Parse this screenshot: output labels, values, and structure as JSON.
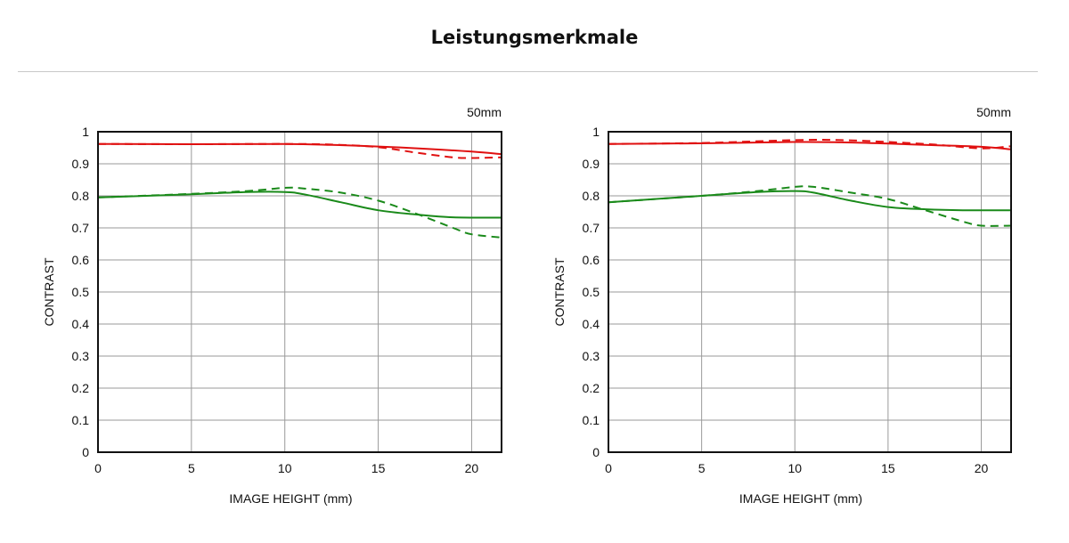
{
  "header": {
    "title": "Leistungsmerkmale"
  },
  "chart_data": [
    {
      "type": "line",
      "focal_label": "50mm",
      "xlabel": "IMAGE HEIGHT (mm)",
      "ylabel": "CONTRAST",
      "xlim": [
        0,
        21.6
      ],
      "ylim": [
        0,
        1
      ],
      "xticks": [
        0,
        5,
        10,
        15,
        20
      ],
      "yticks": [
        0,
        0.1,
        0.2,
        0.3,
        0.4,
        0.5,
        0.6,
        0.7,
        0.8,
        0.9,
        1
      ],
      "grid": true,
      "series": [
        {
          "color": "#e01010",
          "dash": false,
          "x": [
            0,
            5,
            10,
            12.5,
            15,
            17.5,
            20,
            21.6
          ],
          "y": [
            0.962,
            0.961,
            0.962,
            0.959,
            0.954,
            0.947,
            0.938,
            0.93
          ]
        },
        {
          "color": "#e01010",
          "dash": true,
          "x": [
            0,
            5,
            10,
            12.5,
            15,
            17,
            19,
            20,
            21.6
          ],
          "y": [
            0.962,
            0.961,
            0.962,
            0.96,
            0.952,
            0.935,
            0.92,
            0.918,
            0.92
          ]
        },
        {
          "color": "#1a8a1a",
          "dash": false,
          "x": [
            0,
            5,
            8,
            10,
            11,
            13,
            15,
            17,
            19,
            21.6
          ],
          "y": [
            0.795,
            0.805,
            0.812,
            0.812,
            0.805,
            0.78,
            0.755,
            0.742,
            0.733,
            0.732
          ]
        },
        {
          "color": "#1a8a1a",
          "dash": true,
          "x": [
            0,
            5,
            8,
            10,
            11,
            13,
            15,
            17,
            19,
            20,
            21.6
          ],
          "y": [
            0.795,
            0.806,
            0.815,
            0.825,
            0.823,
            0.81,
            0.785,
            0.745,
            0.7,
            0.68,
            0.67
          ]
        }
      ]
    },
    {
      "type": "line",
      "focal_label": "50mm",
      "xlabel": "IMAGE HEIGHT (mm)",
      "ylabel": "CONTRAST",
      "xlim": [
        0,
        21.6
      ],
      "ylim": [
        0,
        1
      ],
      "xticks": [
        0,
        5,
        10,
        15,
        20
      ],
      "yticks": [
        0,
        0.1,
        0.2,
        0.3,
        0.4,
        0.5,
        0.6,
        0.7,
        0.8,
        0.9,
        1
      ],
      "grid": true,
      "series": [
        {
          "color": "#e01010",
          "dash": false,
          "x": [
            0,
            5,
            10,
            12.5,
            15,
            17.5,
            20,
            21.6
          ],
          "y": [
            0.962,
            0.964,
            0.968,
            0.967,
            0.963,
            0.958,
            0.953,
            0.945
          ]
        },
        {
          "color": "#e01010",
          "dash": true,
          "x": [
            0,
            5,
            10,
            12.5,
            15,
            17.5,
            20,
            21.6
          ],
          "y": [
            0.962,
            0.965,
            0.974,
            0.974,
            0.968,
            0.96,
            0.948,
            0.955
          ]
        },
        {
          "color": "#1a8a1a",
          "dash": false,
          "x": [
            0,
            5,
            8,
            10,
            11,
            13,
            15,
            17,
            19,
            21.6
          ],
          "y": [
            0.78,
            0.8,
            0.812,
            0.815,
            0.81,
            0.785,
            0.765,
            0.758,
            0.755,
            0.755
          ]
        },
        {
          "color": "#1a8a1a",
          "dash": true,
          "x": [
            0,
            5,
            8,
            10,
            11,
            13,
            15,
            17,
            19,
            20,
            21.6
          ],
          "y": [
            0.78,
            0.8,
            0.815,
            0.828,
            0.828,
            0.81,
            0.79,
            0.755,
            0.72,
            0.707,
            0.707
          ]
        }
      ]
    }
  ]
}
